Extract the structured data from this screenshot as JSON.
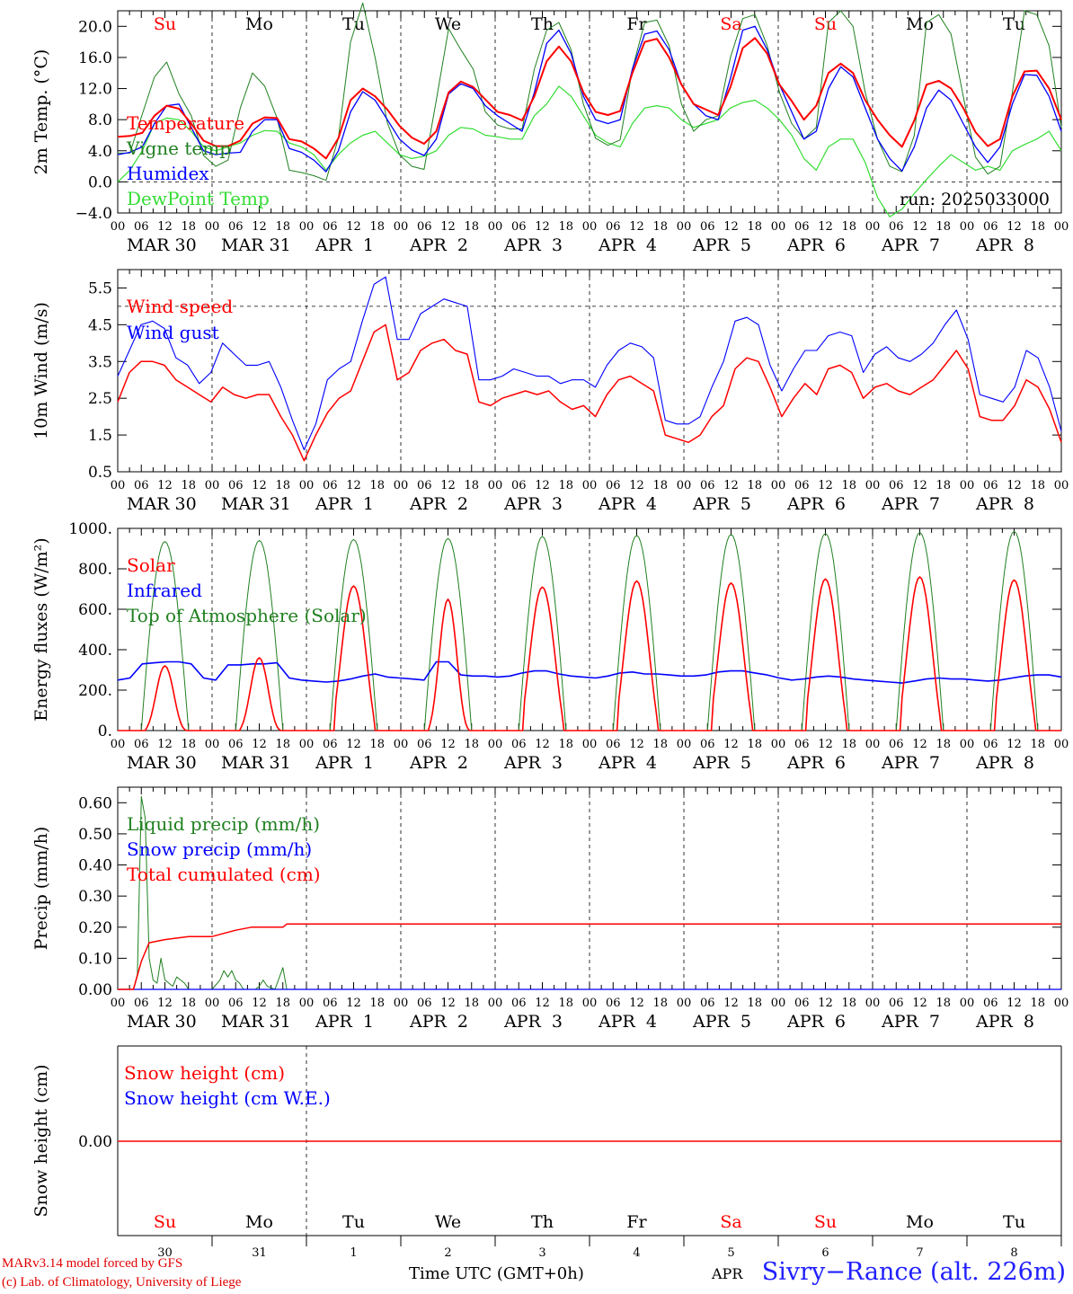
{
  "chart_data": [
    {
      "type": "line",
      "ylabel": "2m Temp. (°C)",
      "ylim": [
        -4,
        22
      ],
      "yticks": [
        "20.0",
        "16.0",
        "12.0",
        "8.0",
        "4.0",
        "0.0",
        "−4.0"
      ],
      "run_label": "run: 2025033000",
      "day_names": [
        "Su",
        "Mo",
        "Tu",
        "We",
        "Th",
        "Fr",
        "Sa",
        "Su",
        "Mo",
        "Tu"
      ],
      "weekend_days": [
        0,
        6,
        7
      ],
      "legend": [
        "Temperature",
        "Vigne temp",
        "Humidex",
        "DewPoint Temp"
      ],
      "series": [
        {
          "name": "Temperature",
          "color": "#ff0000",
          "values": [
            5.8,
            5.9,
            6.3,
            8.5,
            9.8,
            9.4,
            7.5,
            5.3,
            4.6,
            4.6,
            5.3,
            7.5,
            8.3,
            8.2,
            5.5,
            5.2,
            4.3,
            3.0,
            5.6,
            10.5,
            12.0,
            11.0,
            9.3,
            7.2,
            5.7,
            4.9,
            6.5,
            11.5,
            12.9,
            12.2,
            10.6,
            9.0,
            8.6,
            7.9,
            11.0,
            15.5,
            17.4,
            15.5,
            11.5,
            9.0,
            8.6,
            9.1,
            14.0,
            18.0,
            18.4,
            16.0,
            12.5,
            10.0,
            9.3,
            8.6,
            12.2,
            17.2,
            18.5,
            16.5,
            12.5,
            10.4,
            8.0,
            9.8,
            14.0,
            15.2,
            14.0,
            10.5,
            8.0,
            6.0,
            4.5,
            7.9,
            12.5,
            13.0,
            12.0,
            9.5,
            6.4,
            4.6,
            5.5,
            11.0,
            14.2,
            14.3,
            12.0,
            8.0
          ]
        },
        {
          "name": "Vigne temp",
          "color": "#208020",
          "values": [
            3.7,
            3.7,
            8.7,
            13.5,
            15.4,
            11.3,
            8.5,
            3.4,
            2.0,
            2.8,
            9.5,
            14.0,
            12.3,
            8.2,
            1.5,
            1.2,
            0.8,
            0.2,
            5.6,
            18.0,
            23.0,
            16.0,
            7.6,
            3.5,
            2.0,
            1.6,
            10.5,
            19.7,
            17.0,
            14.5,
            9.0,
            7.3,
            6.8,
            6.8,
            14.5,
            19.5,
            20.5,
            17.0,
            10.0,
            5.6,
            4.7,
            5.4,
            14.5,
            20.5,
            20.8,
            17.5,
            10.0,
            6.5,
            8.0,
            8.5,
            16.0,
            21.0,
            21.5,
            17.5,
            11.5,
            7.5,
            5.5,
            7.0,
            20.5,
            22.0,
            20.0,
            11.5,
            5.5,
            2.0,
            1.3,
            6.0,
            20.5,
            21.5,
            19.0,
            11.0,
            3.2,
            1.0,
            2.0,
            11.5,
            22.0,
            21.5,
            17.5,
            7.0
          ]
        },
        {
          "name": "Humidex",
          "color": "#0000ff",
          "values": [
            3.5,
            3.8,
            4.5,
            7.5,
            9.8,
            10.0,
            7.0,
            4.0,
            3.5,
            3.7,
            3.8,
            6.5,
            8.0,
            8.0,
            4.3,
            3.8,
            2.8,
            1.3,
            4.0,
            9.0,
            11.6,
            10.5,
            8.0,
            5.5,
            4.1,
            3.4,
            5.5,
            11.3,
            12.6,
            12.0,
            9.8,
            8.5,
            7.5,
            6.5,
            11.5,
            17.8,
            19.5,
            16.5,
            11.0,
            8.0,
            7.5,
            8.0,
            14.5,
            19.0,
            19.4,
            17.0,
            12.5,
            10.0,
            8.5,
            8.0,
            13.3,
            19.5,
            20.0,
            17.0,
            12.5,
            9.0,
            5.5,
            6.5,
            12.0,
            14.8,
            13.5,
            9.5,
            5.5,
            3.0,
            1.4,
            4.5,
            9.5,
            11.8,
            10.5,
            7.5,
            4.5,
            2.5,
            4.5,
            10.0,
            13.8,
            13.7,
            11.0,
            6.5
          ]
        },
        {
          "name": "DewPoint Temp",
          "color": "#33dd33",
          "values": [
            0.0,
            1.5,
            4.0,
            7.5,
            8.2,
            8.0,
            6.5,
            4.5,
            4.0,
            4.5,
            5.0,
            6.0,
            6.6,
            6.5,
            5.0,
            4.5,
            3.5,
            1.5,
            3.5,
            5.0,
            6.0,
            6.5,
            5.0,
            3.5,
            3.0,
            3.3,
            4.0,
            6.0,
            7.0,
            6.8,
            6.0,
            5.8,
            5.5,
            5.5,
            8.5,
            10.0,
            12.3,
            11.0,
            8.5,
            6.0,
            5.0,
            4.5,
            7.5,
            9.5,
            9.8,
            9.5,
            8.0,
            7.0,
            7.5,
            8.0,
            9.5,
            10.2,
            10.5,
            9.5,
            8.0,
            6.0,
            3.0,
            1.5,
            4.5,
            5.5,
            5.5,
            2.5,
            -2.0,
            -4.5,
            -3.5,
            -1.5,
            0.3,
            2.0,
            3.5,
            2.5,
            1.5,
            2.0,
            1.5,
            4.0,
            4.8,
            5.5,
            6.5,
            4.0
          ]
        }
      ]
    },
    {
      "type": "line",
      "ylabel": "10m Wind (m/s)",
      "ylim": [
        0.5,
        6.0
      ],
      "yticks": [
        "5.5",
        "4.5",
        "3.5",
        "2.5",
        "1.5",
        "0.5"
      ],
      "dashed_level": 5.0,
      "legend": [
        "Wind speed",
        "Wind gust"
      ],
      "series": [
        {
          "name": "Wind speed",
          "color": "#ff0000",
          "values": [
            2.4,
            3.2,
            3.5,
            3.5,
            3.4,
            3.0,
            2.8,
            2.6,
            2.4,
            2.8,
            2.6,
            2.5,
            2.6,
            2.6,
            2.0,
            1.5,
            0.8,
            1.5,
            2.1,
            2.5,
            2.7,
            3.5,
            4.3,
            4.5,
            3.0,
            3.2,
            3.8,
            4.0,
            4.1,
            3.8,
            3.7,
            2.4,
            2.3,
            2.5,
            2.6,
            2.7,
            2.6,
            2.7,
            2.4,
            2.2,
            2.3,
            2.0,
            2.6,
            3.0,
            3.1,
            2.9,
            2.7,
            1.5,
            1.4,
            1.3,
            1.5,
            2.0,
            2.3,
            3.3,
            3.6,
            3.5,
            2.8,
            2.0,
            2.5,
            2.9,
            2.6,
            3.3,
            3.4,
            3.2,
            2.5,
            2.8,
            2.9,
            2.7,
            2.6,
            2.8,
            3.0,
            3.4,
            3.8,
            3.3,
            2.0,
            1.9,
            1.9,
            2.3,
            3.0,
            2.8,
            2.2,
            1.3
          ]
        },
        {
          "name": "Wind gust",
          "color": "#0000ff",
          "values": [
            3.1,
            3.8,
            4.5,
            4.6,
            4.4,
            3.6,
            3.4,
            2.9,
            3.2,
            4.0,
            3.7,
            3.4,
            3.4,
            3.5,
            2.8,
            1.9,
            1.1,
            1.8,
            3.0,
            3.3,
            3.5,
            4.6,
            5.6,
            5.8,
            4.1,
            4.1,
            4.8,
            5.0,
            5.2,
            5.1,
            5.0,
            3.0,
            3.0,
            3.1,
            3.3,
            3.2,
            3.1,
            3.1,
            2.9,
            3.0,
            3.0,
            2.8,
            3.4,
            3.8,
            4.0,
            3.9,
            3.6,
            1.9,
            1.8,
            1.8,
            2.0,
            2.8,
            3.5,
            4.6,
            4.7,
            4.5,
            3.4,
            2.7,
            3.3,
            3.8,
            3.8,
            4.2,
            4.3,
            4.2,
            3.2,
            3.7,
            3.9,
            3.6,
            3.5,
            3.7,
            4.0,
            4.5,
            4.9,
            4.1,
            2.6,
            2.5,
            2.4,
            2.8,
            3.8,
            3.6,
            2.8,
            1.6
          ]
        }
      ]
    },
    {
      "type": "line",
      "ylabel": "Energy fluxes (W/m²)",
      "ylim": [
        0,
        1000
      ],
      "yticks": [
        "1000.",
        "800.",
        "600.",
        "400.",
        "200.",
        "0."
      ],
      "legend": [
        "Solar",
        "Infrared",
        "Top of Atmosphere (Solar)"
      ],
      "solar_peaks": [
        320,
        360,
        715,
        650,
        710,
        740,
        730,
        750,
        760,
        745
      ],
      "toa_peaks": [
        935,
        940,
        945,
        950,
        960,
        965,
        970,
        975,
        980,
        985
      ],
      "series": [
        {
          "name": "Infrared",
          "color": "#0000ff",
          "values": [
            250,
            260,
            330,
            335,
            340,
            340,
            330,
            260,
            250,
            325,
            325,
            330,
            330,
            335,
            260,
            250,
            245,
            240,
            245,
            255,
            270,
            280,
            265,
            260,
            255,
            250,
            340,
            340,
            275,
            270,
            270,
            265,
            270,
            285,
            295,
            295,
            280,
            270,
            265,
            260,
            270,
            285,
            290,
            280,
            280,
            275,
            270,
            270,
            275,
            290,
            295,
            295,
            285,
            275,
            260,
            250,
            255,
            265,
            270,
            265,
            255,
            250,
            245,
            240,
            235,
            245,
            255,
            260,
            255,
            255,
            250,
            245,
            250,
            260,
            270,
            275,
            275,
            265
          ]
        }
      ]
    },
    {
      "type": "line",
      "ylabel": "Precip (mm/h)",
      "ylim": [
        0,
        0.65
      ],
      "yticks": [
        "0.60",
        "0.50",
        "0.40",
        "0.30",
        "0.20",
        "0.10",
        "0.00"
      ],
      "legend": [
        "Liquid precip (mm/h)",
        "Snow precip (mm/h)",
        "Total cumulated (cm)"
      ],
      "liquid_points": [
        [
          0,
          0
        ],
        [
          4,
          0
        ],
        [
          5,
          0.05
        ],
        [
          6,
          0.62
        ],
        [
          7,
          0.55
        ],
        [
          8,
          0.1
        ],
        [
          9,
          0.03
        ],
        [
          10,
          0.02
        ],
        [
          11,
          0.1
        ],
        [
          12,
          0.03
        ],
        [
          13,
          0.02
        ],
        [
          14,
          0.01
        ],
        [
          15,
          0.04
        ],
        [
          16,
          0.03
        ],
        [
          17,
          0.02
        ],
        [
          18,
          0
        ],
        [
          24,
          0
        ],
        [
          26,
          0.03
        ],
        [
          27,
          0.06
        ],
        [
          28,
          0.04
        ],
        [
          29,
          0.06
        ],
        [
          30,
          0.03
        ],
        [
          31,
          0.02
        ],
        [
          32,
          0.0
        ],
        [
          35,
          0.0
        ],
        [
          36,
          0.01
        ],
        [
          37,
          0.03
        ],
        [
          38,
          0.01
        ],
        [
          40,
          0
        ],
        [
          42,
          0.07
        ],
        [
          43,
          0.0
        ],
        [
          240,
          0
        ]
      ],
      "total_points": [
        [
          0,
          0
        ],
        [
          4,
          0
        ],
        [
          6,
          0.09
        ],
        [
          7,
          0.12
        ],
        [
          8,
          0.15
        ],
        [
          12,
          0.16
        ],
        [
          18,
          0.17
        ],
        [
          24,
          0.17
        ],
        [
          30,
          0.19
        ],
        [
          34,
          0.2
        ],
        [
          42,
          0.2
        ],
        [
          43,
          0.21
        ],
        [
          240,
          0.21
        ]
      ]
    },
    {
      "type": "line",
      "ylabel": "Snow height (cm)",
      "zero_label": "0.00",
      "legend": [
        "Snow height (cm)",
        "Snow height (cm W.E.)"
      ],
      "date_numbers": [
        "30",
        "31",
        "1",
        "2",
        "3",
        "4",
        "5",
        "6",
        "7",
        "8"
      ]
    }
  ],
  "shared_axis": {
    "hour_ticks": [
      "00",
      "06",
      "12",
      "18"
    ],
    "date_labels": [
      "MAR 30",
      "MAR 31",
      "APR  1",
      "APR  2",
      "APR  3",
      "APR  4",
      "APR  5",
      "APR  6",
      "APR  7",
      "APR  8"
    ]
  },
  "footer": {
    "model_line": "MARv3.14 model forced by GFS",
    "copyright_line": "(c) Lab. of Climatology, University of Liege",
    "axis_title": "Time UTC (GMT+0h)",
    "month_label": "APR",
    "station": "Sivry−Rance (alt. 226m)"
  },
  "colors": {
    "red": "#ff0000",
    "blue": "#0000ff",
    "green": "#208020",
    "light_green": "#33dd33",
    "weekend": "#ff0000",
    "weekday": "#000000"
  }
}
